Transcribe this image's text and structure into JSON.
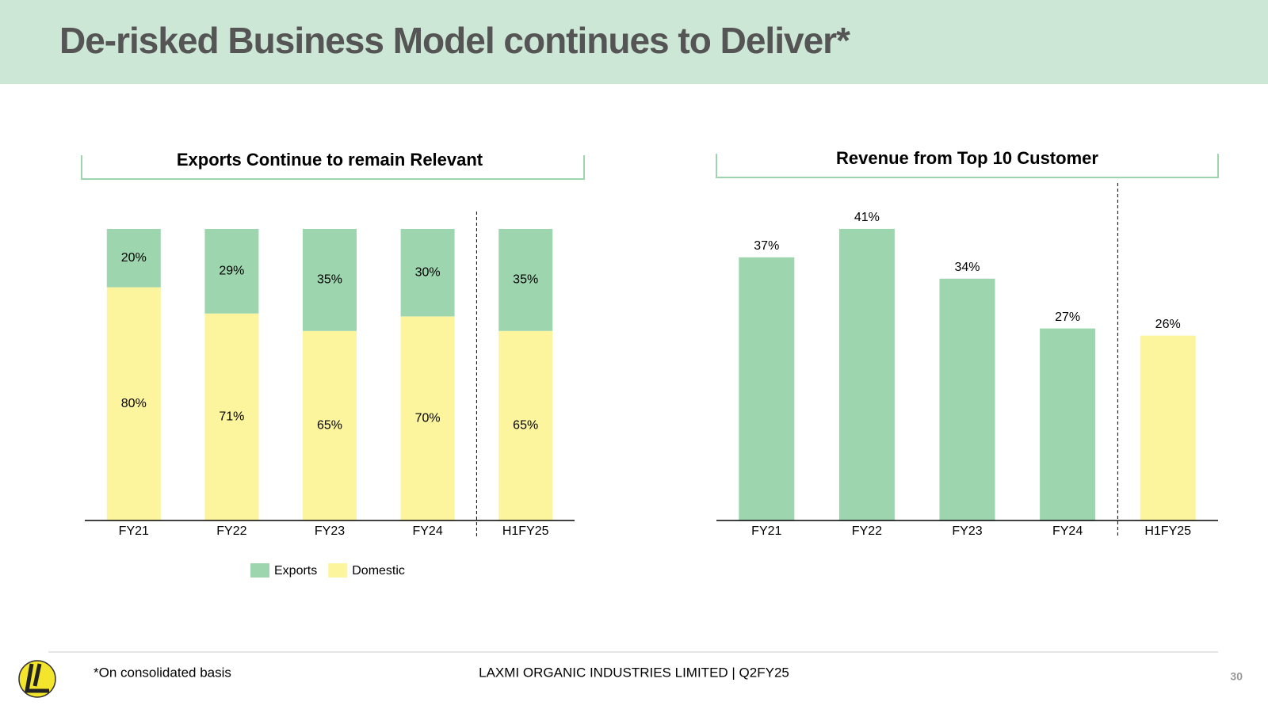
{
  "header": {
    "title": "De-risked Business Model continues to Deliver*"
  },
  "chart_data": [
    {
      "type": "bar",
      "stacked": true,
      "title": "Exports Continue to remain Relevant",
      "categories": [
        "FY21",
        "FY22",
        "FY23",
        "FY24",
        "H1FY25"
      ],
      "series": [
        {
          "name": "Exports",
          "color": "#9dd5ae",
          "values": [
            20,
            29,
            35,
            30,
            35
          ],
          "value_labels": [
            "20%",
            "29%",
            "35%",
            "30%",
            "35%"
          ]
        },
        {
          "name": "Domestic",
          "color": "#fdf49e",
          "values": [
            80,
            71,
            65,
            70,
            65
          ],
          "value_labels": [
            "80%",
            "71%",
            "65%",
            "70%",
            "65%"
          ]
        }
      ],
      "ylim": [
        0,
        100
      ]
    },
    {
      "type": "bar",
      "title": "Revenue from Top 10 Customer",
      "categories": [
        "FY21",
        "FY22",
        "FY23",
        "FY24",
        "H1FY25"
      ],
      "values": [
        37,
        41,
        34,
        27,
        26
      ],
      "value_labels": [
        "37%",
        "41%",
        "34%",
        "27%",
        "26%"
      ],
      "colors": [
        "#9dd5ae",
        "#9dd5ae",
        "#9dd5ae",
        "#9dd5ae",
        "#fdf49e"
      ],
      "ylim": [
        0,
        45
      ]
    }
  ],
  "footer": {
    "note": "*On consolidated basis",
    "company": "LAXMI ORGANIC INDUSTRIES LIMITED | Q2FY25",
    "page": "30"
  }
}
